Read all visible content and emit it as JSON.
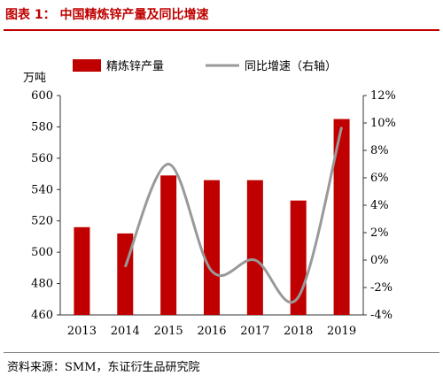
{
  "figure": {
    "title": "图表 1：  中国精炼锌产量及同比增速",
    "source": "资料来源：SMM，东证衍生品研究院"
  },
  "chart_data": {
    "type": "bar",
    "categories": [
      "2013",
      "2014",
      "2015",
      "2016",
      "2017",
      "2018",
      "2019"
    ],
    "series": [
      {
        "name": "精炼锌产量",
        "type": "bar",
        "axis": "left",
        "color": "#c00000",
        "values": [
          516,
          512,
          549,
          546,
          546,
          533,
          585
        ]
      },
      {
        "name": "同比增速（右轴）",
        "type": "line",
        "axis": "right",
        "color": "#999999",
        "values": [
          null,
          -0.5,
          7.0,
          -0.8,
          0.0,
          -2.7,
          9.7
        ]
      }
    ],
    "ylabel": "万吨",
    "ylim": [
      460,
      600
    ],
    "yticks": [
      "460",
      "480",
      "500",
      "520",
      "540",
      "560",
      "580",
      "600"
    ],
    "y2lim": [
      -4,
      12
    ],
    "y2ticks": [
      "-4%",
      "-2%",
      "0%",
      "2%",
      "4%",
      "6%",
      "8%",
      "10%",
      "12%"
    ],
    "legend_position": "top",
    "grid": false
  }
}
